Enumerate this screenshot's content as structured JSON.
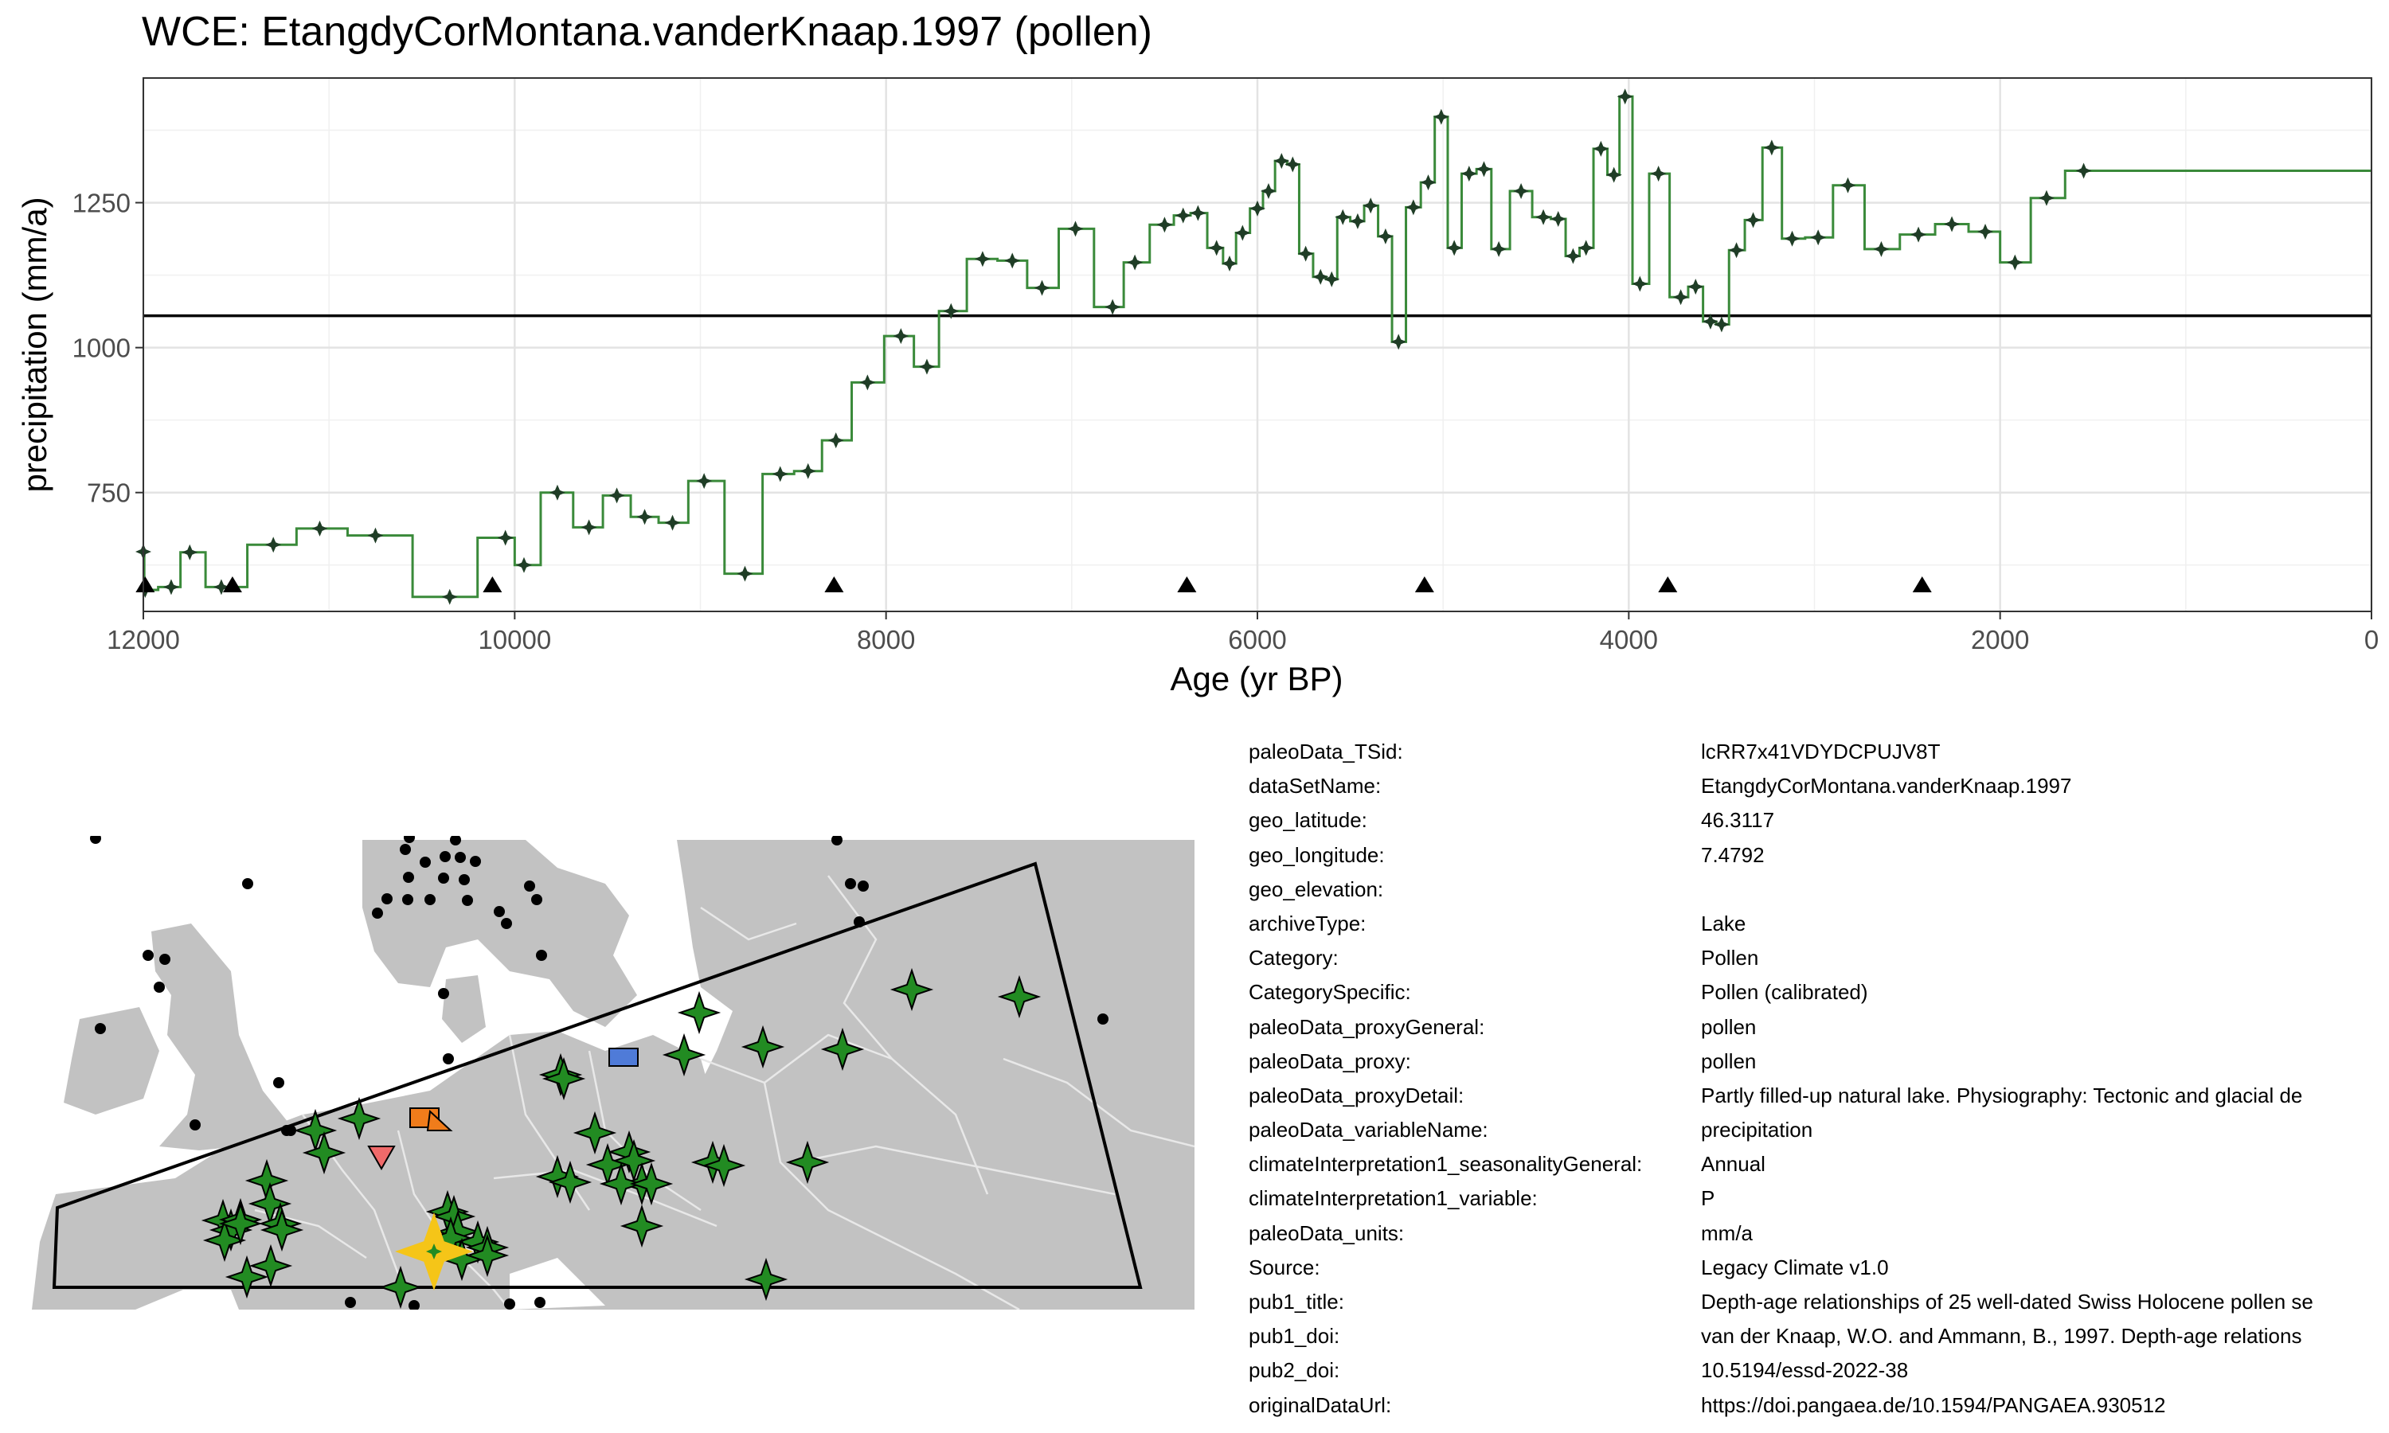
{
  "chart_data": {
    "type": "line",
    "title": "WCE: EtangdyCorMontana.vanderKnaap.1997 (pollen)",
    "xlabel": "Age (yr BP)",
    "ylabel": "precipitation (mm/a)",
    "xlim": [
      12000,
      0
    ],
    "ylim": [
      545,
      1465
    ],
    "x_reversed": true,
    "x_ticks": [
      12000,
      10000,
      8000,
      6000,
      4000,
      2000,
      0
    ],
    "y_ticks": [
      750,
      1000,
      1250
    ],
    "grid": true,
    "reference_line": 1055,
    "step": "mid",
    "series": [
      {
        "color": "#3a8a3a",
        "marker_color": "#1f3d26",
        "points": [
          [
            12000,
            648
          ],
          [
            11990,
            582
          ],
          [
            11850,
            587
          ],
          [
            11750,
            647
          ],
          [
            11580,
            587
          ],
          [
            11300,
            660
          ],
          [
            11050,
            688
          ],
          [
            10750,
            676
          ],
          [
            10350,
            570
          ],
          [
            10050,
            672
          ],
          [
            9950,
            625
          ],
          [
            9770,
            750
          ],
          [
            9600,
            690
          ],
          [
            9450,
            745
          ],
          [
            9300,
            708
          ],
          [
            9150,
            698
          ],
          [
            8980,
            770
          ],
          [
            8760,
            610
          ],
          [
            8570,
            782
          ],
          [
            8420,
            787
          ],
          [
            8270,
            840
          ],
          [
            8100,
            940
          ],
          [
            7920,
            1020
          ],
          [
            7780,
            967
          ],
          [
            7650,
            1063
          ],
          [
            7480,
            1153
          ],
          [
            7320,
            1150
          ],
          [
            7160,
            1103
          ],
          [
            6980,
            1205
          ],
          [
            6780,
            1070
          ],
          [
            6660,
            1147
          ],
          [
            6500,
            1212
          ],
          [
            6400,
            1228
          ],
          [
            6320,
            1232
          ],
          [
            6220,
            1172
          ],
          [
            6150,
            1145
          ],
          [
            6080,
            1198
          ],
          [
            6000,
            1240
          ],
          [
            5940,
            1270
          ],
          [
            5870,
            1322
          ],
          [
            5810,
            1316
          ],
          [
            5740,
            1162
          ],
          [
            5660,
            1122
          ],
          [
            5600,
            1118
          ],
          [
            5540,
            1225
          ],
          [
            5460,
            1218
          ],
          [
            5390,
            1245
          ],
          [
            5310,
            1192
          ],
          [
            5240,
            1010
          ],
          [
            5160,
            1242
          ],
          [
            5080,
            1285
          ],
          [
            5010,
            1398
          ],
          [
            4940,
            1172
          ],
          [
            4860,
            1300
          ],
          [
            4780,
            1308
          ],
          [
            4700,
            1170
          ],
          [
            4580,
            1270
          ],
          [
            4460,
            1225
          ],
          [
            4380,
            1222
          ],
          [
            4300,
            1158
          ],
          [
            4230,
            1172
          ],
          [
            4150,
            1343
          ],
          [
            4080,
            1298
          ],
          [
            4020,
            1433
          ],
          [
            3940,
            1110
          ],
          [
            3840,
            1300
          ],
          [
            3720,
            1087
          ],
          [
            3640,
            1105
          ],
          [
            3560,
            1045
          ],
          [
            3500,
            1040
          ],
          [
            3420,
            1168
          ],
          [
            3330,
            1220
          ],
          [
            3230,
            1345
          ],
          [
            3120,
            1188
          ],
          [
            2980,
            1190
          ],
          [
            2820,
            1280
          ],
          [
            2640,
            1170
          ],
          [
            2440,
            1195
          ],
          [
            2260,
            1213
          ],
          [
            2080,
            1200
          ],
          [
            1920,
            1147
          ],
          [
            1750,
            1258
          ],
          [
            1550,
            1305
          ]
        ]
      }
    ],
    "events": [
      11990,
      11520,
      10120,
      8280,
      6380,
      5100,
      3790,
      2420
    ]
  },
  "map": {
    "land_color": "#c2c2c2",
    "border_color": "#e8e8e8",
    "site_marker": {
      "color": "#f5c518",
      "shape": "star"
    },
    "record_marker": {
      "color": "#228b22",
      "shape": "star"
    },
    "other_markers": [
      {
        "shape": "square",
        "color": "#4f7bd8"
      },
      {
        "shape": "square",
        "color": "#f07c1b"
      },
      {
        "shape": "triangle-up",
        "color": "#f07c1b"
      },
      {
        "shape": "triangle-down",
        "color": "#f06a6a"
      }
    ]
  },
  "metadata": [
    {
      "key": "paleoData_TSid:",
      "value": "lcRR7x41VDYDCPUJV8T"
    },
    {
      "key": "dataSetName:",
      "value": "EtangdyCorMontana.vanderKnaap.1997"
    },
    {
      "key": "geo_latitude:",
      "value": "46.3117"
    },
    {
      "key": "geo_longitude:",
      "value": "7.4792"
    },
    {
      "key": "geo_elevation:",
      "value": ""
    },
    {
      "key": "archiveType:",
      "value": "Lake"
    },
    {
      "key": "Category:",
      "value": "Pollen"
    },
    {
      "key": "CategorySpecific:",
      "value": "Pollen (calibrated)"
    },
    {
      "key": "paleoData_proxyGeneral:",
      "value": "pollen"
    },
    {
      "key": "paleoData_proxy:",
      "value": "pollen"
    },
    {
      "key": "paleoData_proxyDetail:",
      "value": "Partly filled-up natural lake. Physiography: Tectonic and glacial de"
    },
    {
      "key": "paleoData_variableName:",
      "value": "precipitation"
    },
    {
      "key": "climateInterpretation1_seasonalityGeneral:",
      "value": "Annual"
    },
    {
      "key": "climateInterpretation1_variable:",
      "value": "P"
    },
    {
      "key": "paleoData_units:",
      "value": "mm/a"
    },
    {
      "key": "Source:",
      "value": "Legacy Climate v1.0"
    },
    {
      "key": "pub1_title:",
      "value": "Depth-age relationships of 25 well-dated Swiss Holocene pollen se"
    },
    {
      "key": "pub1_doi:",
      "value": "van der Knaap, W.O. and Ammann, B., 1997. Depth-age relations"
    },
    {
      "key": "pub2_doi:",
      "value": "10.5194/essd-2022-38"
    },
    {
      "key": "originalDataUrl:",
      "value": "https://doi.pangaea.de/10.1594/PANGAEA.930512"
    }
  ]
}
